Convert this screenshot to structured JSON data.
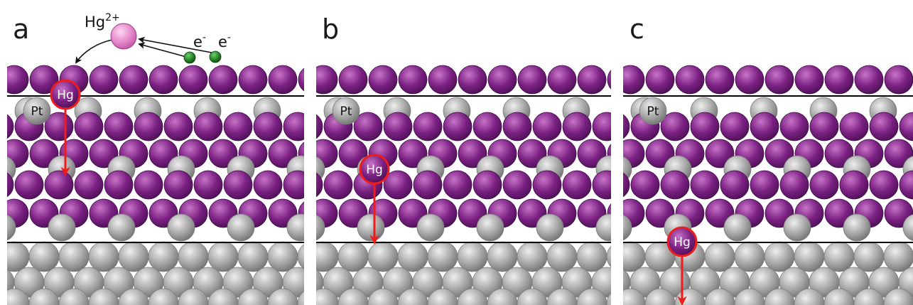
{
  "panels": [
    {
      "letter": "a",
      "pt_label": "Pt",
      "hg_label": "Hg"
    },
    {
      "letter": "b",
      "pt_label": "Pt",
      "hg_label": "Hg"
    },
    {
      "letter": "c",
      "pt_label": "Pt",
      "hg_label": "Hg"
    }
  ],
  "ion": {
    "symbol": "Hg",
    "charge": "2+"
  },
  "electrons": [
    {
      "symbol": "e",
      "charge": "-"
    },
    {
      "symbol": "e",
      "charge": "-"
    }
  ],
  "colors": {
    "mercury_atom": "#7b2183",
    "platinum_atom": "#a3a3a3",
    "mercury_ion": "#e07fc4",
    "electron": "#1f7a1f",
    "migration_arrow": "#ee1c1c",
    "layer_line": "#000000"
  }
}
